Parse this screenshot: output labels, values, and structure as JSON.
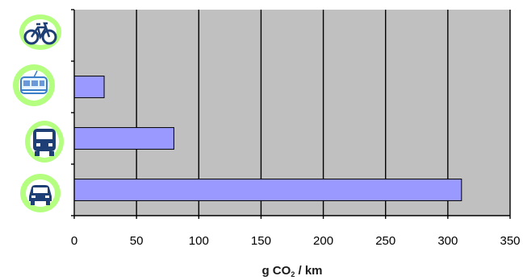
{
  "chart_data": {
    "type": "bar",
    "orientation": "horizontal",
    "categories": [
      "bicycle",
      "tram",
      "bus",
      "car"
    ],
    "category_icons": [
      "bicycle-icon",
      "tram-icon",
      "bus-icon",
      "car-icon"
    ],
    "values": [
      0,
      24,
      80,
      311
    ],
    "xlim": [
      0,
      350
    ],
    "xticks": [
      "0",
      "50",
      "100",
      "150",
      "200",
      "250",
      "300",
      "350"
    ],
    "xlabel": {
      "main": "g CO",
      "subscript": "2",
      "unit": " / km"
    },
    "grid": true,
    "legend": "none",
    "colors": {
      "plot_bg": "#c0c0c0",
      "bar_fill": "#9999ff",
      "bar_stroke": "#000000",
      "grid": "#000000",
      "icon_glow": "#a7ff6a",
      "icon_dark": "#1d3f76",
      "icon_light": "#6b98d8"
    }
  }
}
